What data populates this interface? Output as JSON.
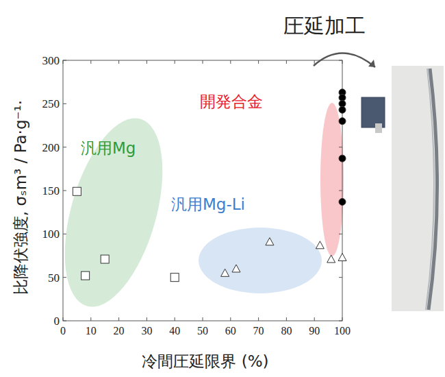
{
  "chart_data": {
    "type": "scatter",
    "xlabel": "冷間圧延限界 (%)",
    "ylabel": "比降伏強度, σₛm³ / Pa·g⁻¹·",
    "xlim": [
      0,
      100
    ],
    "xticks": [
      0,
      10,
      20,
      30,
      40,
      50,
      60,
      70,
      80,
      90,
      100
    ],
    "ylim": [
      0,
      300
    ],
    "yticks": [
      0,
      50,
      100,
      150,
      200,
      250,
      300
    ],
    "grid": false,
    "annotations": [
      "圧延加工"
    ],
    "series": [
      {
        "name": "汎用Mg",
        "color": "#2e9b3a",
        "marker": "square-open",
        "x": [
          5,
          8,
          15,
          40
        ],
        "values": [
          149,
          52,
          71,
          50
        ]
      },
      {
        "name": "汎用Mg-Li",
        "color": "#3a7fcf",
        "marker": "triangle-open",
        "x": [
          58,
          62,
          74,
          92,
          96,
          100
        ],
        "values": [
          55,
          60,
          91,
          87,
          71,
          73
        ]
      },
      {
        "name": "開発合金",
        "color": "#e8202a",
        "marker": "circle",
        "x": [
          100,
          100,
          100,
          100,
          100,
          100,
          100
        ],
        "values": [
          263,
          257,
          250,
          243,
          230,
          187,
          137
        ]
      }
    ]
  }
}
